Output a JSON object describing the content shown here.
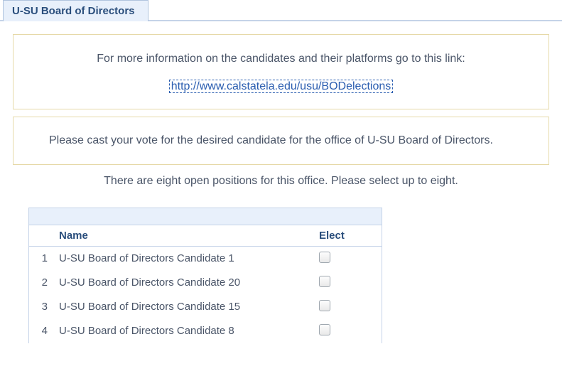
{
  "tab": {
    "label": "U-SU Board of Directors"
  },
  "infoBox": {
    "line": "For more information on the candidates   and their platforms go to this link:",
    "linkText": "http://www.calstatela.edu/usu/BODelections",
    "linkHref": "http://www.calstatela.edu/usu/BODelections"
  },
  "voteBox": {
    "text": "Please cast your vote for the desired candidate for the office of U-SU Board of Directors."
  },
  "positionsText": "There are eight open positions for this office.  Please select up to eight.",
  "table": {
    "headers": {
      "name": "Name",
      "elect": "Elect"
    },
    "rows": [
      {
        "num": "1",
        "name": "U-SU Board of Directors Candidate 1"
      },
      {
        "num": "2",
        "name": "U-SU Board of Directors Candidate 20"
      },
      {
        "num": "3",
        "name": "U-SU Board of Directors Candidate 15"
      },
      {
        "num": "4",
        "name": "U-SU Board of Directors Candidate 8"
      }
    ]
  }
}
